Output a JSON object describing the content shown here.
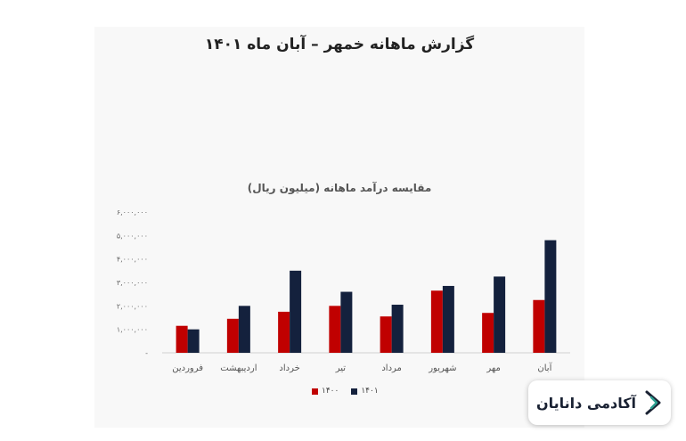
{
  "page": {
    "main_title": "گزارش ماهانه خمهر – آبان ماه ۱۴۰۱",
    "badge_text": "آکادمی دانایان"
  },
  "colors": {
    "series_1400": "#c00000",
    "series_1401": "#14213d"
  },
  "chart_data": {
    "type": "bar",
    "title": "مقایسه درآمد ماهانه (میلیون ریال)",
    "categories": [
      "فروردین",
      "اردیبهشت",
      "خرداد",
      "تیر",
      "مرداد",
      "شهریور",
      "مهر",
      "آبان"
    ],
    "series": [
      {
        "name": "۱۴۰۰",
        "values": [
          1150000,
          1450000,
          1750000,
          2000000,
          1550000,
          2650000,
          1700000,
          2250000
        ]
      },
      {
        "name": "۱۴۰۱",
        "values": [
          1000000,
          2000000,
          3500000,
          2600000,
          2050000,
          2850000,
          3250000,
          4800000
        ]
      }
    ],
    "y_ticks": [
      "-",
      "۱,۰۰۰,۰۰۰",
      "۲,۰۰۰,۰۰۰",
      "۳,۰۰۰,۰۰۰",
      "۴,۰۰۰,۰۰۰",
      "۵,۰۰۰,۰۰۰",
      "۶,۰۰۰,۰۰۰"
    ],
    "ylim": [
      0,
      6000000
    ],
    "grid": false,
    "legend_position": "bottom"
  }
}
